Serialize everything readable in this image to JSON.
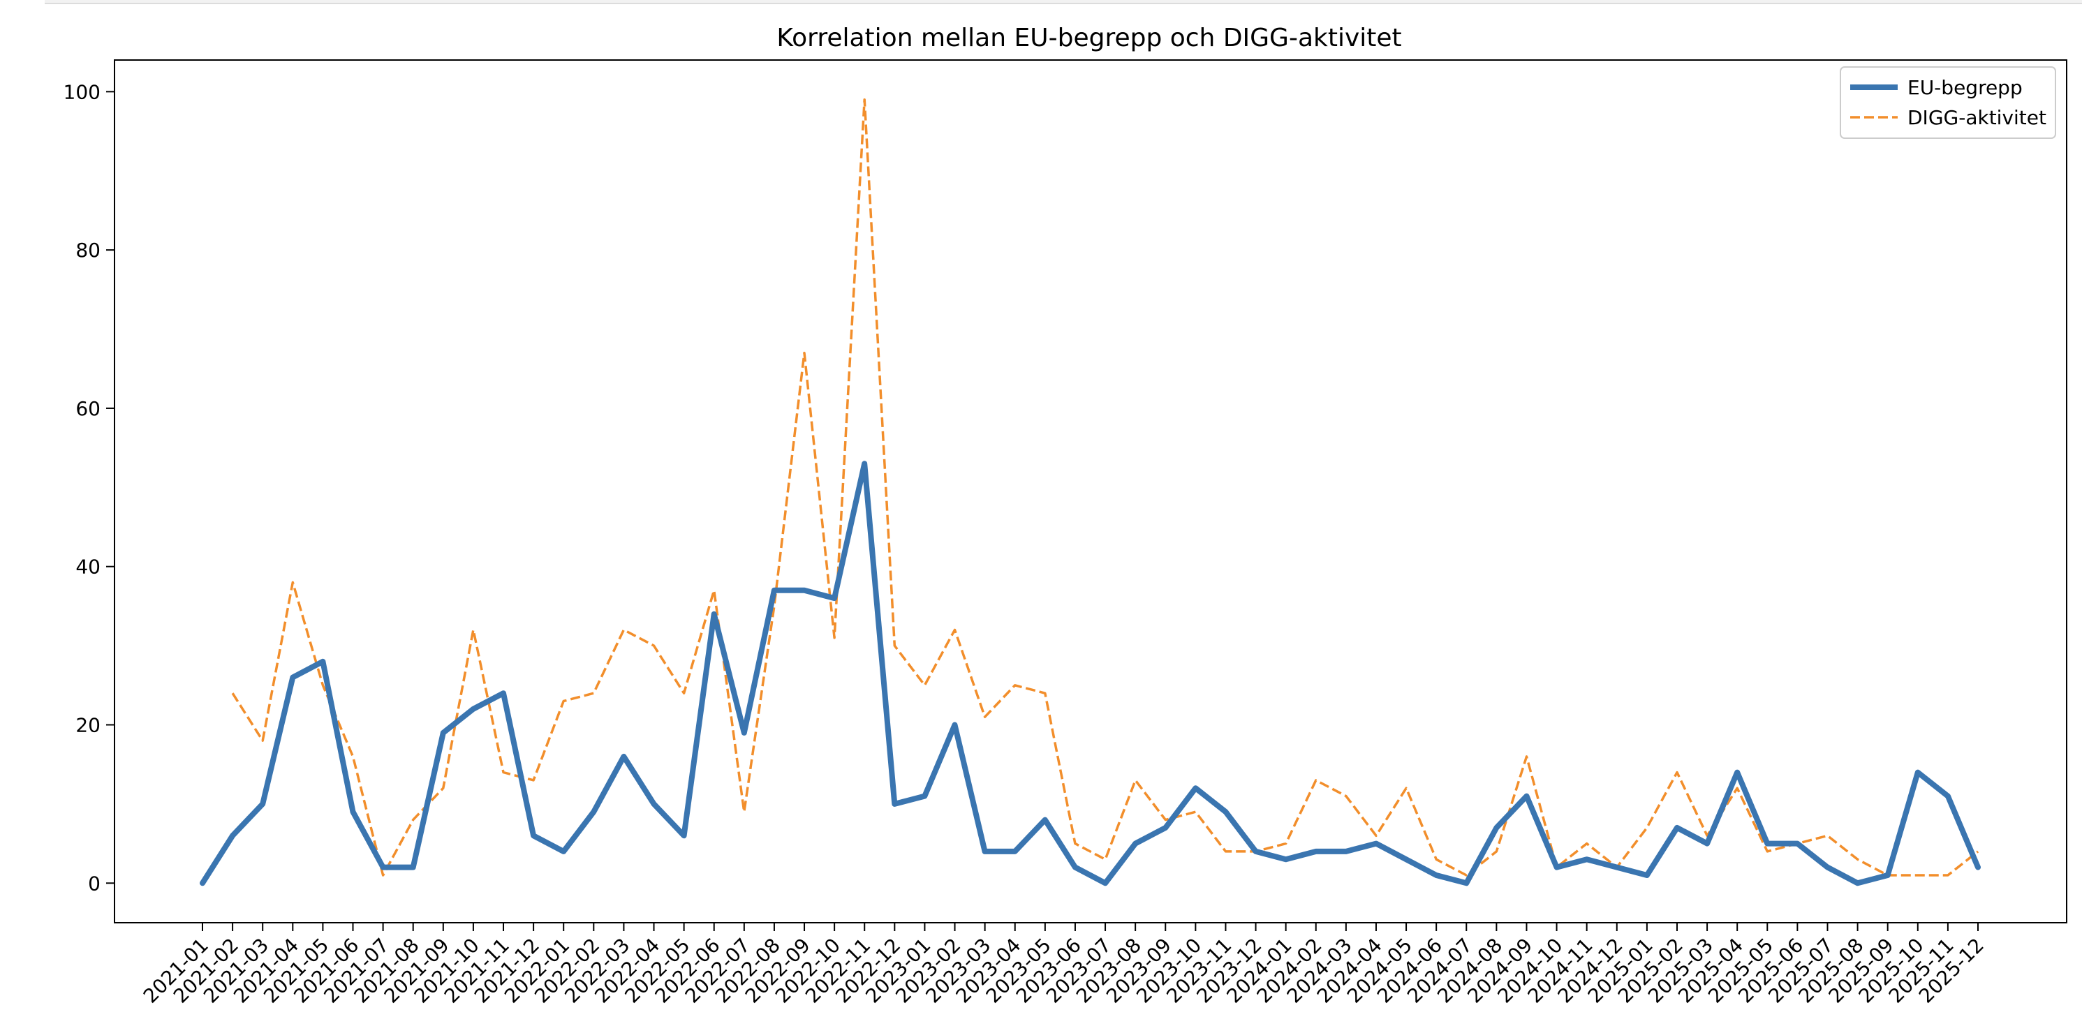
{
  "chart_data": {
    "type": "line",
    "title": "Korrelation mellan EU-begrepp och DIGG-aktivitet",
    "xlabel": "",
    "ylabel": "",
    "ylim": [
      -5,
      104
    ],
    "yticks": [
      0,
      20,
      40,
      60,
      80,
      100
    ],
    "grid": false,
    "legend_position": "top-right",
    "categories": [
      "2021-01",
      "2021-02",
      "2021-03",
      "2021-04",
      "2021-05",
      "2021-06",
      "2021-07",
      "2021-08",
      "2021-09",
      "2021-10",
      "2021-11",
      "2021-12",
      "2022-01",
      "2022-02",
      "2022-03",
      "2022-04",
      "2022-05",
      "2022-06",
      "2022-07",
      "2022-08",
      "2022-09",
      "2022-10",
      "2022-11",
      "2022-12",
      "2023-01",
      "2023-02",
      "2023-03",
      "2023-04",
      "2023-05",
      "2023-06",
      "2023-07",
      "2023-08",
      "2023-09",
      "2023-10",
      "2023-11",
      "2023-12",
      "2024-01",
      "2024-02",
      "2024-03",
      "2024-04",
      "2024-05",
      "2024-06",
      "2024-07",
      "2024-08",
      "2024-09",
      "2024-10",
      "2024-11",
      "2024-12",
      "2025-01",
      "2025-02",
      "2025-03",
      "2025-04",
      "2025-05",
      "2025-06",
      "2025-07",
      "2025-08",
      "2025-09",
      "2025-10",
      "2025-11",
      "2025-12"
    ],
    "series": [
      {
        "name": "EU-begrepp",
        "color": "#3a75b0",
        "style": "solid",
        "values": [
          0,
          6,
          10,
          26,
          28,
          9,
          2,
          2,
          19,
          22,
          24,
          6,
          4,
          9,
          16,
          10,
          6,
          34,
          19,
          37,
          37,
          36,
          53,
          10,
          11,
          20,
          4,
          4,
          8,
          2,
          0,
          5,
          7,
          12,
          9,
          4,
          3,
          4,
          4,
          5,
          3,
          1,
          0,
          7,
          11,
          2,
          3,
          2,
          1,
          7,
          5,
          14,
          5,
          5,
          2,
          0,
          1,
          14,
          11,
          2
        ]
      },
      {
        "name": "DIGG-aktivitet",
        "color": "#f28e2b",
        "style": "dashed",
        "values": [
          null,
          24,
          18,
          38,
          25,
          16,
          1,
          8,
          12,
          32,
          14,
          13,
          23,
          24,
          32,
          30,
          24,
          37,
          9,
          35,
          67,
          31,
          99,
          30,
          25,
          32,
          21,
          25,
          24,
          5,
          3,
          13,
          8,
          9,
          4,
          4,
          5,
          13,
          11,
          6,
          12,
          3,
          1,
          4,
          16,
          2,
          5,
          2,
          7,
          14,
          6,
          12,
          4,
          5,
          6,
          3,
          1,
          1,
          1,
          4
        ]
      }
    ]
  }
}
